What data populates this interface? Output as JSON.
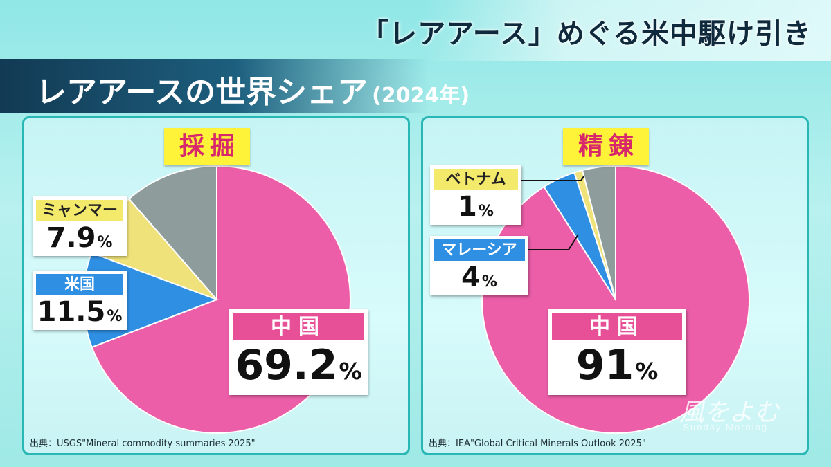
{
  "header": {
    "topic": "「レアアース」めぐる米中駆け引き",
    "title": "レアアースの世界シェア",
    "year": "(2024年)"
  },
  "colors": {
    "china": "#ec5ea8",
    "us": "#2f8fe3",
    "myanmar": "#efe27a",
    "other": "#8f9c9c",
    "vietnam": "#efe27a",
    "malaysia": "#2f8fe3"
  },
  "watermark": {
    "logo": "風をよむ",
    "sub": "Sunday Morning"
  },
  "chart_data": [
    {
      "type": "pie",
      "title": "採掘",
      "slices": [
        {
          "label": "中国",
          "value": 69.2,
          "value_text": "69.2",
          "color": "#ec5ea8"
        },
        {
          "label": "米国",
          "value": 11.5,
          "value_text": "11.5",
          "color": "#2f8fe3"
        },
        {
          "label": "ミャンマー",
          "value": 7.9,
          "value_text": "7.9",
          "color": "#efe27a"
        },
        {
          "label": "",
          "value": 11.4,
          "value_text": "",
          "color": "#8f9c9c"
        }
      ],
      "unit": "%",
      "source": "出典：USGS\"Mineral commodity summaries 2025\""
    },
    {
      "type": "pie",
      "title": "精錬",
      "slices": [
        {
          "label": "中国",
          "value": 91,
          "value_text": "91",
          "color": "#ec5ea8"
        },
        {
          "label": "マレーシア",
          "value": 4,
          "value_text": "4",
          "color": "#2f8fe3"
        },
        {
          "label": "ベトナム",
          "value": 1,
          "value_text": "1",
          "color": "#efe27a"
        },
        {
          "label": "",
          "value": 4,
          "value_text": "",
          "color": "#8f9c9c"
        }
      ],
      "unit": "%",
      "source": "出典：IEA\"Global Critical Minerals Outlook 2025\""
    }
  ]
}
